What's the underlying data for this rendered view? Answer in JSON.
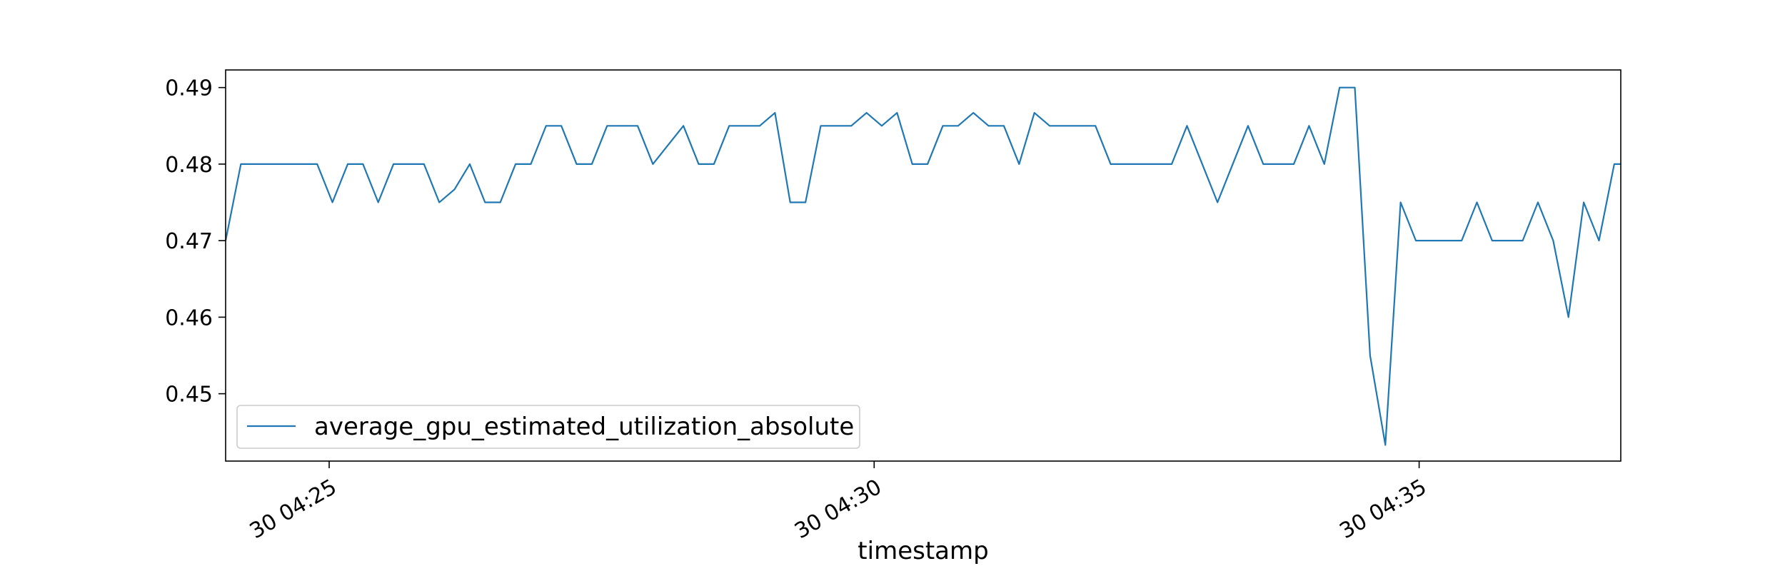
{
  "chart_data": {
    "type": "line",
    "title": "",
    "xlabel": "timestamp",
    "ylabel": "",
    "x_tick_labels": [
      "30 04:25",
      "30 04:30",
      "30 04:35"
    ],
    "x_tick_minutes": [
      25,
      30,
      35
    ],
    "x_range_minutes": [
      24.05,
      36.85
    ],
    "y_ticks": [
      0.45,
      0.46,
      0.47,
      0.48,
      0.49
    ],
    "ylim": [
      0.4412,
      0.4923
    ],
    "grid": false,
    "legend_position": "lower-left",
    "colors": {
      "series": "#1f77b4",
      "axes": "#000000",
      "legend_border": "#cccccc"
    },
    "series": [
      {
        "name": "average_gpu_estimated_utilization_absolute",
        "x_minutes": [
          24.05,
          24.19,
          24.33,
          24.47,
          24.61,
          24.75,
          24.89,
          25.03,
          25.17,
          25.31,
          25.45,
          25.59,
          25.73,
          25.87,
          26.01,
          26.15,
          26.29,
          26.43,
          26.57,
          26.71,
          26.85,
          26.99,
          27.13,
          27.27,
          27.41,
          27.55,
          27.69,
          27.83,
          27.97,
          28.11,
          28.25,
          28.39,
          28.53,
          28.67,
          28.81,
          28.95,
          29.09,
          29.23,
          29.37,
          29.51,
          29.65,
          29.79,
          29.93,
          30.07,
          30.21,
          30.35,
          30.49,
          30.63,
          30.77,
          30.91,
          31.05,
          31.19,
          31.33,
          31.47,
          31.61,
          31.75,
          31.89,
          32.03,
          32.17,
          32.31,
          32.45,
          32.59,
          32.73,
          32.87,
          33.01,
          33.15,
          33.29,
          33.43,
          33.57,
          33.71,
          33.85,
          33.99,
          34.13,
          34.27,
          34.41,
          34.55,
          34.69,
          34.83,
          34.97,
          35.11,
          35.25,
          35.39,
          35.53,
          35.67,
          35.81,
          35.95,
          36.09,
          36.23,
          36.37,
          36.51,
          36.65,
          36.79,
          36.85
        ],
        "values": [
          0.47,
          0.48,
          0.48,
          0.48,
          0.48,
          0.48,
          0.48,
          0.475,
          0.48,
          0.48,
          0.475,
          0.48,
          0.48,
          0.48,
          0.475,
          0.4767,
          0.48,
          0.475,
          0.475,
          0.48,
          0.48,
          0.485,
          0.485,
          0.48,
          0.48,
          0.485,
          0.485,
          0.485,
          0.48,
          0.4825,
          0.485,
          0.48,
          0.48,
          0.485,
          0.485,
          0.485,
          0.4867,
          0.475,
          0.475,
          0.485,
          0.485,
          0.485,
          0.4867,
          0.485,
          0.4867,
          0.48,
          0.48,
          0.485,
          0.485,
          0.4867,
          0.485,
          0.485,
          0.48,
          0.4867,
          0.485,
          0.485,
          0.485,
          0.485,
          0.48,
          0.48,
          0.48,
          0.48,
          0.48,
          0.485,
          0.48,
          0.475,
          0.48,
          0.485,
          0.48,
          0.48,
          0.48,
          0.485,
          0.48,
          0.49,
          0.49,
          0.455,
          0.4433,
          0.475,
          0.47,
          0.47,
          0.47,
          0.47,
          0.475,
          0.47,
          0.47,
          0.47,
          0.475,
          0.47,
          0.46,
          0.475,
          0.47,
          0.48,
          0.48
        ]
      }
    ]
  }
}
